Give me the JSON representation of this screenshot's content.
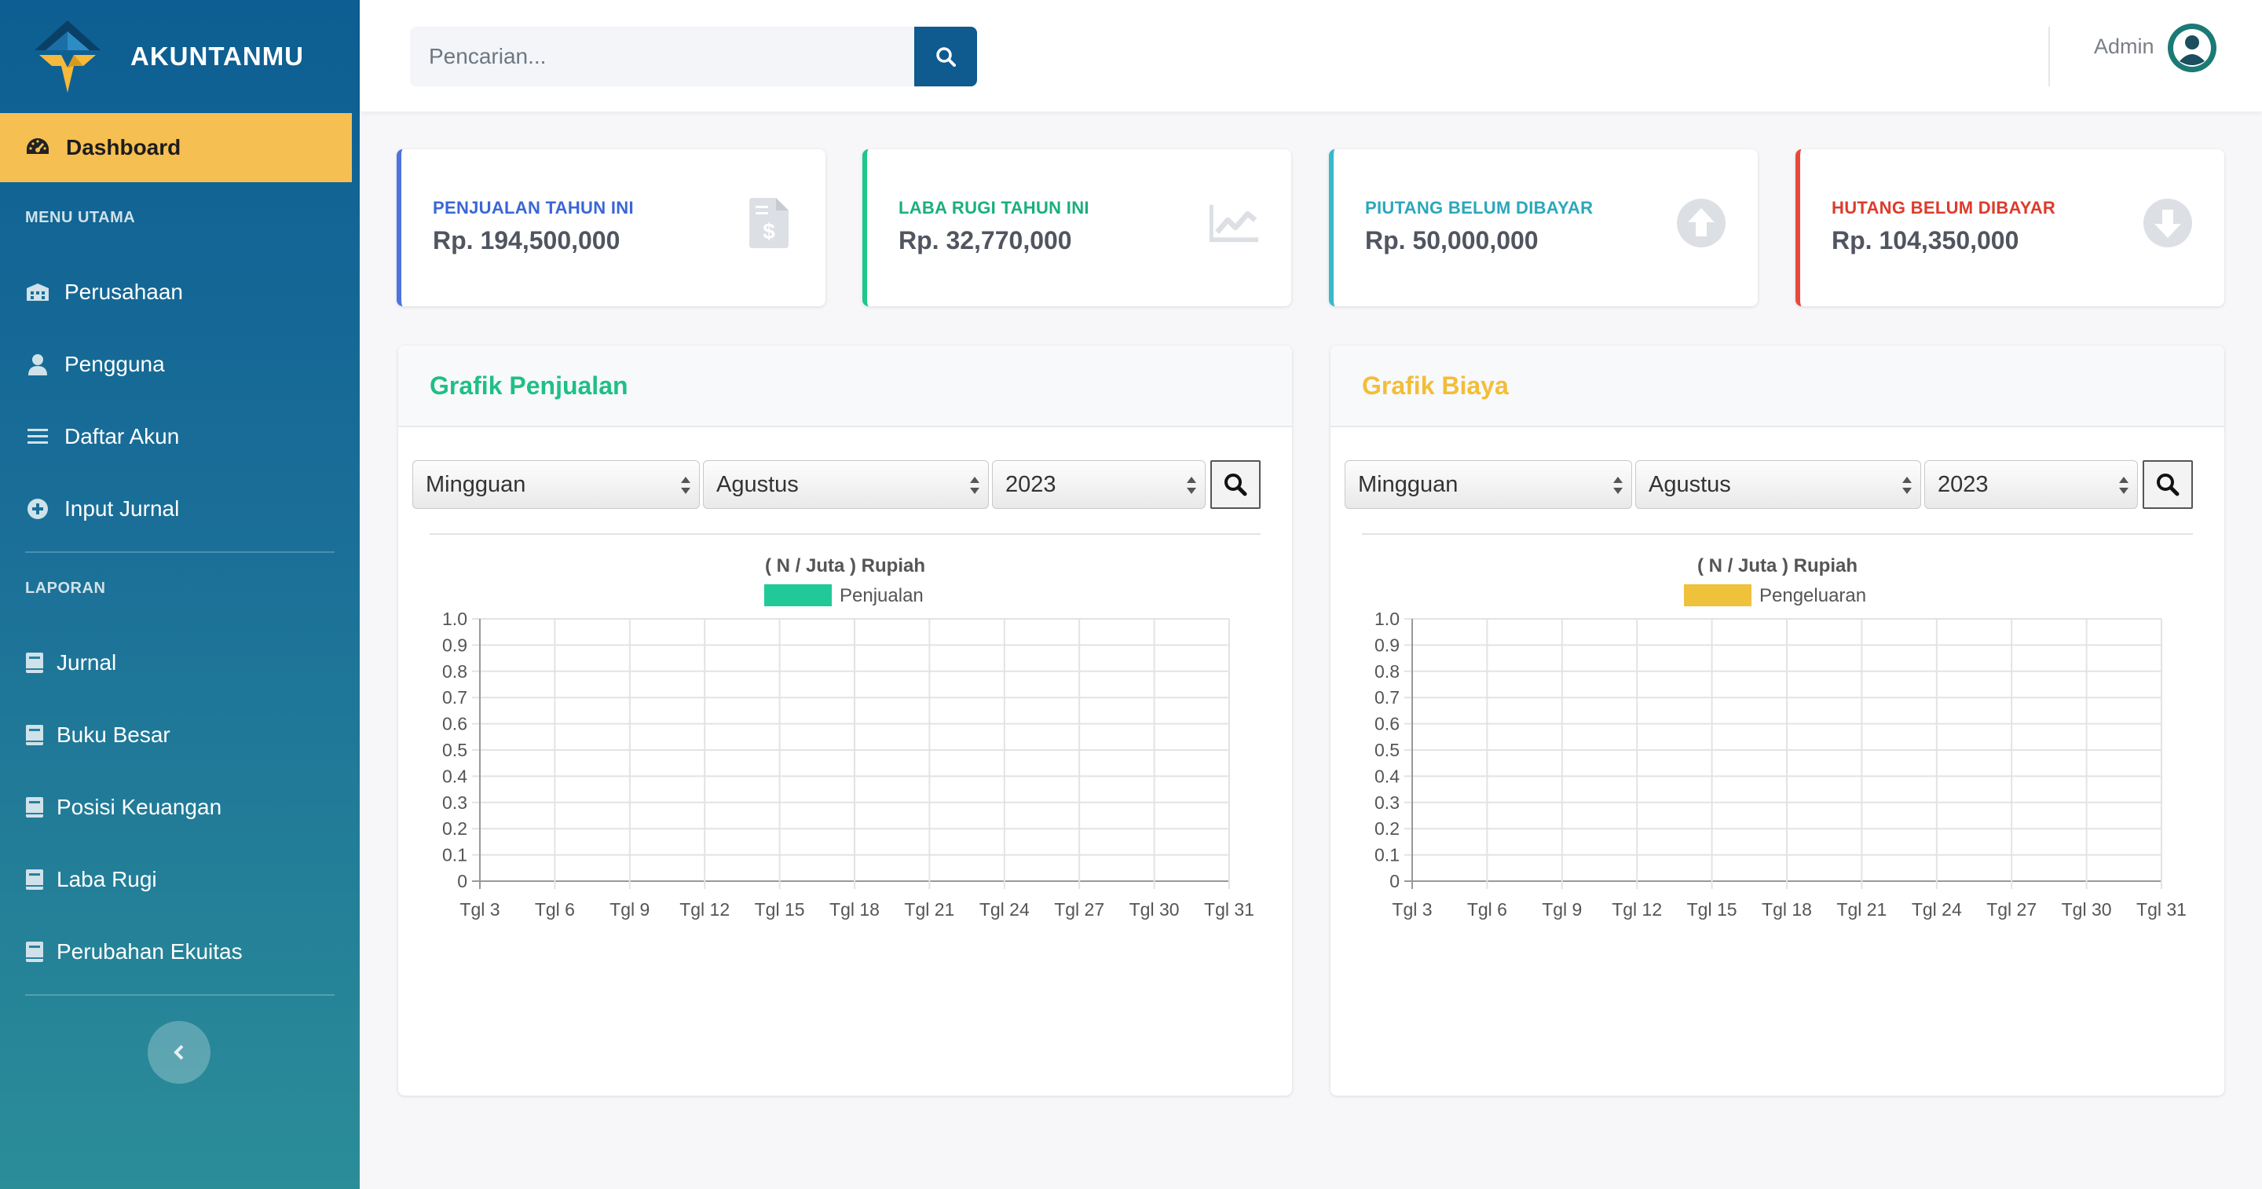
{
  "sidebar": {
    "brand": "AKUNTANMU",
    "active_item": "Dashboard",
    "menu_utama_title": "MENU UTAMA",
    "menu_utama": [
      {
        "label": "Perusahaan",
        "icon": "building-icon"
      },
      {
        "label": "Pengguna",
        "icon": "user-icon"
      },
      {
        "label": "Daftar Akun",
        "icon": "list-icon"
      },
      {
        "label": "Input Jurnal",
        "icon": "plus-circle-icon"
      }
    ],
    "laporan_title": "LAPORAN",
    "laporan": [
      {
        "label": "Jurnal",
        "icon": "book-icon"
      },
      {
        "label": "Buku Besar",
        "icon": "book-icon"
      },
      {
        "label": "Posisi Keuangan",
        "icon": "book-icon"
      },
      {
        "label": "Laba Rugi",
        "icon": "book-icon"
      },
      {
        "label": "Perubahan Ekuitas",
        "icon": "book-icon"
      }
    ]
  },
  "topbar": {
    "search_placeholder": "Pencarian...",
    "user": "Admin"
  },
  "cards": [
    {
      "label": "PENJUALAN TAHUN INI",
      "value": "Rp. 194,500,000",
      "color": "#4e73df",
      "icon": "file-invoice-dollar-icon"
    },
    {
      "label": "LABA RUGI TAHUN INI",
      "value": "Rp. 32,770,000",
      "color": "#1cc88a",
      "icon": "chart-line-icon"
    },
    {
      "label": "PIUTANG BELUM DIBAYAR",
      "value": "Rp. 50,000,000",
      "color": "#36b9cc",
      "icon": "arrow-up-circle-icon"
    },
    {
      "label": "HUTANG BELUM DIBAYAR",
      "value": "Rp. 104,350,000",
      "color": "#e74a3b",
      "icon": "arrow-down-circle-icon"
    }
  ],
  "panels": [
    {
      "title": "Grafik Penjualan",
      "title_color": "#1cc88a",
      "period": "Mingguan",
      "month": "Agustus",
      "year": "2023"
    },
    {
      "title": "Grafik Biaya",
      "title_color": "#f6c23e",
      "period": "Mingguan",
      "month": "Agustus",
      "year": "2023"
    }
  ],
  "chart_data": [
    {
      "type": "bar",
      "title": "( N / Juta ) Rupiah",
      "categories": [
        "Tgl 3",
        "Tgl 6",
        "Tgl 9",
        "Tgl 12",
        "Tgl 15",
        "Tgl 18",
        "Tgl 21",
        "Tgl 24",
        "Tgl 27",
        "Tgl 30",
        "Tgl 31"
      ],
      "series": [
        {
          "name": "Penjualan",
          "color": "#20c997",
          "values": [
            0,
            0,
            0,
            0,
            0,
            0,
            0,
            0,
            0,
            0,
            0
          ]
        }
      ],
      "yticks": [
        "0",
        "0.1",
        "0.2",
        "0.3",
        "0.4",
        "0.5",
        "0.6",
        "0.7",
        "0.8",
        "0.9",
        "1.0"
      ],
      "ylim": [
        0,
        1
      ],
      "grid": true,
      "legend": "top"
    },
    {
      "type": "bar",
      "title": "( N / Juta ) Rupiah",
      "categories": [
        "Tgl 3",
        "Tgl 6",
        "Tgl 9",
        "Tgl 12",
        "Tgl 15",
        "Tgl 18",
        "Tgl 21",
        "Tgl 24",
        "Tgl 27",
        "Tgl 30",
        "Tgl 31"
      ],
      "series": [
        {
          "name": "Pengeluaran",
          "color": "#f0c13a",
          "values": [
            0,
            0,
            0,
            0,
            0,
            0,
            0,
            0,
            0,
            0,
            0
          ]
        }
      ],
      "yticks": [
        "0",
        "0.1",
        "0.2",
        "0.3",
        "0.4",
        "0.5",
        "0.6",
        "0.7",
        "0.8",
        "0.9",
        "1.0"
      ],
      "ylim": [
        0,
        1
      ],
      "grid": true,
      "legend": "top"
    }
  ]
}
